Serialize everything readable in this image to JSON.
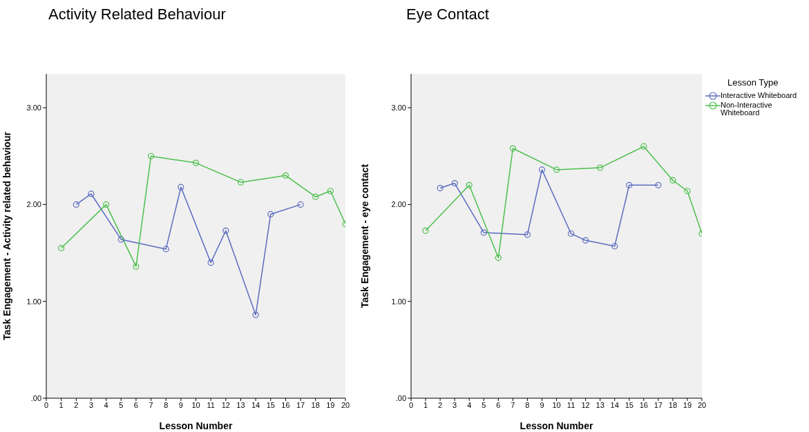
{
  "chart_data": [
    {
      "type": "line",
      "title": "Activity Related Behaviour",
      "xlabel": "Lesson Number",
      "ylabel": "Task Engagement - Activity related behaviour",
      "xlim": [
        0,
        20
      ],
      "xticks": [
        0,
        1,
        2,
        3,
        4,
        5,
        6,
        7,
        8,
        9,
        10,
        11,
        12,
        13,
        14,
        15,
        16,
        17,
        18,
        19,
        20
      ],
      "ylim": [
        0,
        3.35
      ],
      "yticks": [
        {
          "value": 0,
          "label": ".00"
        },
        {
          "value": 1,
          "label": "1.00"
        },
        {
          "value": 2,
          "label": "2.00"
        },
        {
          "value": 3,
          "label": "3.00"
        }
      ],
      "marker": "circle",
      "legend": false,
      "series": [
        {
          "color": "#5a6bbf",
          "x": [
            2,
            3,
            5,
            8,
            9,
            11,
            12,
            14,
            15,
            17
          ],
          "values": [
            2.0,
            2.11,
            1.64,
            1.54,
            2.18,
            1.4,
            1.73,
            0.86,
            1.9,
            2.0
          ]
        },
        {
          "color": "#4cbf4c",
          "x": [
            1,
            4,
            6,
            7,
            10,
            13,
            16,
            18,
            19,
            20
          ],
          "values": [
            1.55,
            2.0,
            1.36,
            2.5,
            2.43,
            2.23,
            2.3,
            2.08,
            2.14,
            1.8
          ]
        }
      ]
    },
    {
      "type": "line",
      "title": "Eye Contact",
      "xlabel": "Lesson Number",
      "ylabel": "Task Engagement - eye contact",
      "legend_title": "Lesson Type",
      "xlim": [
        0,
        20
      ],
      "xticks": [
        0,
        1,
        2,
        3,
        4,
        5,
        6,
        7,
        8,
        9,
        10,
        11,
        12,
        13,
        14,
        15,
        16,
        17,
        18,
        19,
        20
      ],
      "ylim": [
        0,
        3.35
      ],
      "yticks": [
        {
          "value": 0,
          "label": ".00"
        },
        {
          "value": 1,
          "label": "1.00"
        },
        {
          "value": 2,
          "label": "2.00"
        },
        {
          "value": 3,
          "label": "3.00"
        }
      ],
      "marker": "circle",
      "legend": "right",
      "series": [
        {
          "name": "Interactive Whiteboard",
          "color": "#5a6bbf",
          "x": [
            2,
            3,
            5,
            8,
            9,
            11,
            12,
            14,
            15,
            17
          ],
          "values": [
            2.17,
            2.22,
            1.71,
            1.69,
            2.36,
            1.7,
            1.63,
            1.57,
            2.2,
            2.2
          ]
        },
        {
          "name": "Non-Interactive Whiteboard",
          "color": "#4cbf4c",
          "x": [
            1,
            4,
            6,
            7,
            10,
            13,
            16,
            18,
            19,
            20
          ],
          "values": [
            1.73,
            2.2,
            1.45,
            2.58,
            2.36,
            2.38,
            2.6,
            2.25,
            2.14,
            1.7
          ]
        }
      ]
    }
  ]
}
